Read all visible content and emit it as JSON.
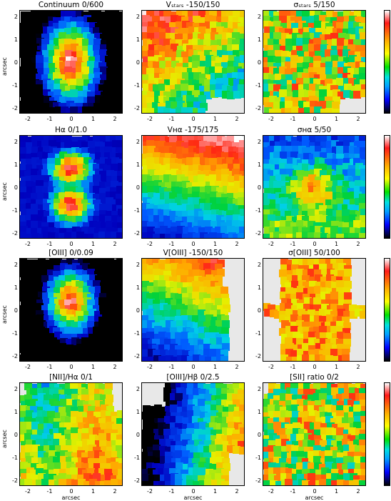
{
  "figure": {
    "axis_label": "arcsec",
    "x_ticks": [
      "-2",
      "-1",
      "0",
      "1",
      "2"
    ],
    "y_ticks": [
      "2",
      "1",
      "0",
      "-1",
      "-2"
    ],
    "colorbar_colors": [
      "#ffffff",
      "#ff1a1a",
      "#ffb000",
      "#ffff00",
      "#00e000",
      "#00e0e0",
      "#00a0ff",
      "#0000ff",
      "#000000"
    ],
    "panels": [
      {
        "title": "Continuum    0/600"
      },
      {
        "title": "Vₛₜₐᵣₛ    -150/150"
      },
      {
        "title": "σₛₜₐᵣₛ    5/150"
      },
      {
        "title": "Hα      0/1.0"
      },
      {
        "title": "Vʜα    -175/175"
      },
      {
        "title": "σʜα    5/50"
      },
      {
        "title": "[OIII]    0/0.09"
      },
      {
        "title": "V[OIII]    -150/150"
      },
      {
        "title": "σ[OIII]    50/100"
      },
      {
        "title": "[NII]/Hα   0/1"
      },
      {
        "title": "[OIII]/Hβ   0/2.5"
      },
      {
        "title": "[SII] ratio 0/2"
      }
    ]
  }
}
